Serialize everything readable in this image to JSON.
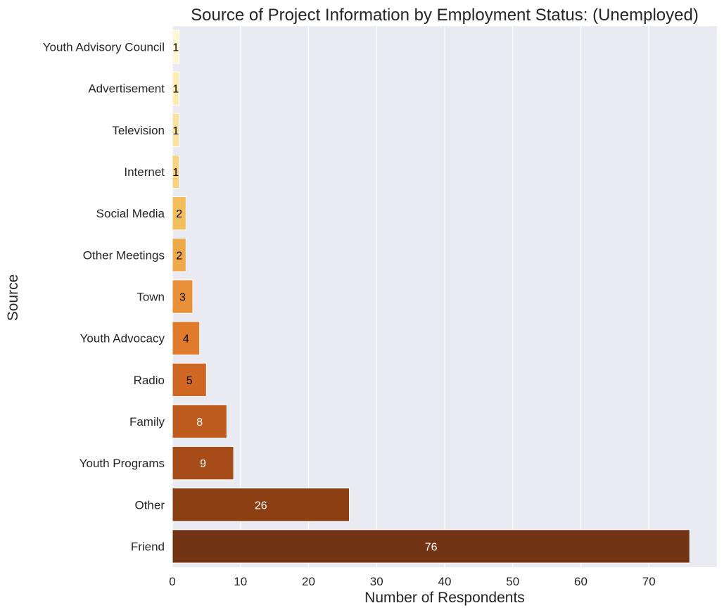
{
  "chart_data": {
    "type": "bar",
    "orientation": "horizontal",
    "title": "Source of Project Information by Employment Status: (Unemployed)",
    "xlabel": "Number of Respondents",
    "ylabel": "Source",
    "categories": [
      "Youth Advisory Council",
      "Advertisement",
      "Television",
      "Internet",
      "Social Media",
      "Other Meetings",
      "Town",
      "Youth Advocacy",
      "Radio",
      "Family",
      "Youth Programs",
      "Other",
      "Friend"
    ],
    "values": [
      1,
      1,
      1,
      1,
      2,
      2,
      3,
      4,
      5,
      8,
      9,
      26,
      76
    ],
    "value_labels": [
      "1",
      "1",
      "1",
      "1",
      "2",
      "2",
      "3",
      "4",
      "5",
      "8",
      "9",
      "26",
      "76"
    ],
    "xlim": [
      0,
      80
    ],
    "xticks": [
      0,
      10,
      20,
      30,
      40,
      50,
      60,
      70
    ],
    "xtick_labels": [
      "0",
      "10",
      "20",
      "30",
      "40",
      "50",
      "60",
      "70"
    ],
    "grid": "vertical",
    "legend": "none",
    "colors": {
      "plot_background": "#EAEAF2",
      "grid": "#FFFFFF",
      "text": "#262626",
      "bar_palette": [
        "#FEF7D3",
        "#FDEDB2",
        "#FBE2A0",
        "#F7D27F",
        "#F2BE5C",
        "#EEA94B",
        "#E99138",
        "#E07A2C",
        "#D06823",
        "#BE5B1E",
        "#A54C18",
        "#8C3F12",
        "#723414"
      ],
      "label_dark": "#000000",
      "label_light": "#FFFFFF"
    }
  }
}
